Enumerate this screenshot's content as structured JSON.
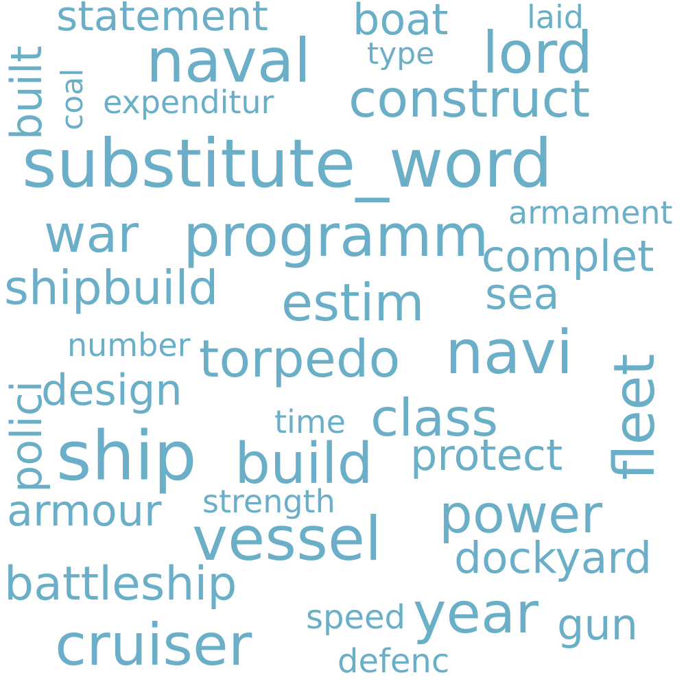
{
  "word_color": "#6aafc7",
  "background": "#ffffff",
  "words": {
    "substitute_word": "substitute_word",
    "naval": "naval",
    "lord": "lord",
    "construct": "construct",
    "statement": "statement",
    "boat": "boat",
    "laid": "laid",
    "type": "type",
    "expenditur": "expenditur",
    "built": "built",
    "coal": "coal",
    "war": "war",
    "programm": "programm",
    "armament": "armament",
    "complet": "complet",
    "shipbuild": "shipbuild",
    "estim": "estim",
    "sea": "sea",
    "torpedo": "torpedo",
    "navi": "navi",
    "fleet": "fleet",
    "number": "number",
    "polici": "polici",
    "design": "design",
    "class": "class",
    "time": "time",
    "ship": "ship",
    "build": "build",
    "protect": "protect",
    "strength": "strength",
    "armour": "armour",
    "power": "power",
    "vessel": "vessel",
    "dockyard": "dockyard",
    "battleship": "battleship",
    "year": "year",
    "speed": "speed",
    "gun": "gun",
    "cruiser": "cruiser",
    "defenc": "defenc"
  }
}
